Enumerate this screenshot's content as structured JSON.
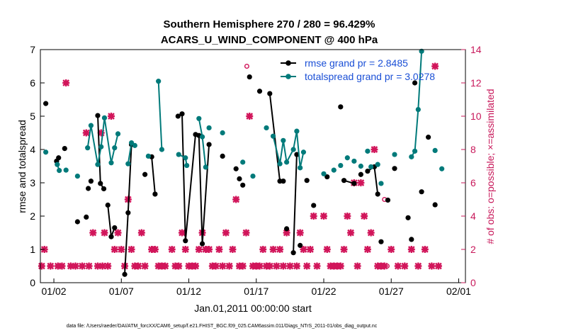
{
  "colors": {
    "rmse": "#000000",
    "spread": "#007a7a",
    "obs": "#d1155a",
    "legend_text": "#1a4fd6",
    "axis_right": "#c8185a"
  },
  "chart_data": {
    "type": "line",
    "title": "Southern Hemisphere 270 / 280 = 96.429%",
    "subtitle": "ACARS_U_WIND_COMPONENT @ 400 hPa",
    "xlabel": "Jan.01,2011 00:00:00 start",
    "ylabel": "rmse and totalspread",
    "ylabel_right": "# of obs: o=possible; ×=assimilated",
    "footer": "data file: /Users/raeder/DAI/ATM_forcXX/CAM6_setup/f.e21.FHIST_BGC.f09_025.CAM6assim.011/Diags_NTrS_2011-01/obs_diag_output.nc",
    "xlim": [
      1.0,
      32.5
    ],
    "ylim": [
      0,
      7
    ],
    "ylim_right": [
      0,
      14
    ],
    "xticks": [
      2,
      7,
      12,
      17,
      22,
      27,
      32
    ],
    "xtick_labels": [
      "01/02",
      "01/07",
      "01/12",
      "01/17",
      "01/22",
      "01/27",
      "02/01"
    ],
    "yticks": [
      0,
      1,
      2,
      3,
      4,
      5,
      6,
      7
    ],
    "yticks_right": [
      0,
      2,
      4,
      6,
      8,
      10,
      12,
      14
    ],
    "grid": false,
    "legend_position": "top-right",
    "series": [
      {
        "name": "rmse grand pr = 2.8485",
        "color": "#000000",
        "points": [
          [
            1.4,
            5.38
          ],
          [
            2.2,
            3.65
          ],
          [
            2.35,
            3.75
          ],
          [
            2.8,
            4.03
          ],
          [
            3.75,
            1.83
          ],
          [
            4.4,
            1.97
          ],
          [
            4.55,
            2.83
          ],
          [
            4.75,
            3.05
          ],
          [
            5.25,
            5.02
          ],
          [
            5.45,
            2.98
          ],
          [
            5.7,
            2.82
          ],
          [
            6.0,
            2.33
          ],
          [
            6.25,
            1.38
          ],
          [
            6.5,
            1.65
          ],
          [
            7.25,
            0.25
          ],
          [
            7.5,
            2.1
          ],
          [
            7.75,
            4.15
          ],
          [
            8.75,
            3.25
          ],
          [
            9.25,
            3.78
          ],
          [
            9.5,
            2.66
          ],
          [
            11.2,
            5.0
          ],
          [
            11.5,
            5.07
          ],
          [
            11.75,
            1.26
          ],
          [
            12.5,
            4.45
          ],
          [
            12.75,
            4.42
          ],
          [
            13.0,
            1.17
          ],
          [
            13.5,
            4.15
          ],
          [
            14.5,
            3.8
          ],
          [
            15.5,
            3.42
          ],
          [
            15.75,
            3.12
          ],
          [
            16.0,
            2.93
          ],
          [
            16.5,
            6.18
          ],
          [
            17.25,
            5.75
          ],
          [
            18.0,
            5.68
          ],
          [
            18.75,
            3.05
          ],
          [
            19.0,
            3.05
          ],
          [
            19.25,
            1.62
          ],
          [
            19.75,
            0.9
          ],
          [
            20.0,
            3.85
          ],
          [
            20.25,
            1.12
          ],
          [
            20.75,
            3.07
          ],
          [
            21.25,
            2.32
          ],
          [
            22.25,
            3.18
          ],
          [
            23.25,
            5.28
          ],
          [
            23.5,
            3.07
          ],
          [
            24.25,
            2.98
          ],
          [
            24.75,
            3.25
          ],
          [
            25.25,
            3.35
          ],
          [
            25.75,
            3.48
          ],
          [
            26.0,
            2.66
          ],
          [
            26.25,
            1.23
          ],
          [
            26.75,
            2.48
          ],
          [
            27.25,
            3.43
          ],
          [
            28.25,
            1.95
          ],
          [
            28.5,
            1.3
          ],
          [
            28.75,
            6.0
          ],
          [
            29.25,
            2.73
          ],
          [
            29.75,
            4.37
          ],
          [
            30.25,
            2.34
          ]
        ],
        "segments": [
          [
            1,
            2
          ],
          [
            8,
            10
          ],
          [
            11,
            13
          ],
          [
            14,
            16
          ],
          [
            18,
            19
          ],
          [
            21,
            23
          ],
          [
            24,
            26
          ],
          [
            33,
            35
          ],
          [
            37,
            38
          ],
          [
            44,
            45
          ],
          [
            47,
            49
          ]
        ]
      },
      {
        "name": "totalspread grand pr = 3.0278",
        "color": "#007a7a",
        "points": [
          [
            1.4,
            3.92
          ],
          [
            2.25,
            3.55
          ],
          [
            2.4,
            3.37
          ],
          [
            2.9,
            3.38
          ],
          [
            3.75,
            3.2
          ],
          [
            4.5,
            4.05
          ],
          [
            4.75,
            4.72
          ],
          [
            5.25,
            3.55
          ],
          [
            5.5,
            4.08
          ],
          [
            5.75,
            4.95
          ],
          [
            6.25,
            3.6
          ],
          [
            6.5,
            4.05
          ],
          [
            6.75,
            4.47
          ],
          [
            7.5,
            3.57
          ],
          [
            7.75,
            4.2
          ],
          [
            8.0,
            4.12
          ],
          [
            9.0,
            3.8
          ],
          [
            9.75,
            6.05
          ],
          [
            10.0,
            4.0
          ],
          [
            11.25,
            3.85
          ],
          [
            11.75,
            3.75
          ],
          [
            11.85,
            3.52
          ],
          [
            12.75,
            4.93
          ],
          [
            13.0,
            4.38
          ],
          [
            13.25,
            3.47
          ],
          [
            13.5,
            4.65
          ],
          [
            14.5,
            4.5
          ],
          [
            16.0,
            3.62
          ],
          [
            16.75,
            3.2
          ],
          [
            17.75,
            4.65
          ],
          [
            18.25,
            4.4
          ],
          [
            18.75,
            3.57
          ],
          [
            19.0,
            4.27
          ],
          [
            19.25,
            3.62
          ],
          [
            19.75,
            4.0
          ],
          [
            20.0,
            4.55
          ],
          [
            20.25,
            3.45
          ],
          [
            20.5,
            3.92
          ],
          [
            22.0,
            3.27
          ],
          [
            22.75,
            3.38
          ],
          [
            23.25,
            3.52
          ],
          [
            23.75,
            3.75
          ],
          [
            24.25,
            3.65
          ],
          [
            24.75,
            3.5
          ],
          [
            25.25,
            3.95
          ],
          [
            25.5,
            3.48
          ],
          [
            26.0,
            3.55
          ],
          [
            26.25,
            2.98
          ],
          [
            27.25,
            3.85
          ],
          [
            28.5,
            3.78
          ],
          [
            28.75,
            3.95
          ],
          [
            29.0,
            5.2
          ],
          [
            29.25,
            6.95
          ],
          [
            30.25,
            3.97
          ],
          [
            30.75,
            3.42
          ]
        ],
        "segments": [
          [
            1,
            2
          ],
          [
            5,
            9
          ],
          [
            9,
            10
          ],
          [
            10,
            12
          ],
          [
            13,
            15
          ],
          [
            17,
            18
          ],
          [
            19,
            21
          ],
          [
            22,
            24
          ],
          [
            30,
            32
          ],
          [
            32,
            37
          ],
          [
            49,
            52
          ]
        ]
      }
    ],
    "obs_assimilated": [
      [
        1.1,
        1
      ],
      [
        1.3,
        2
      ],
      [
        1.75,
        1
      ],
      [
        2.3,
        1
      ],
      [
        2.6,
        1
      ],
      [
        2.9,
        12
      ],
      [
        3.25,
        1
      ],
      [
        3.6,
        1
      ],
      [
        4.1,
        1
      ],
      [
        4.4,
        9
      ],
      [
        4.6,
        1
      ],
      [
        4.9,
        3
      ],
      [
        5.25,
        1
      ],
      [
        5.75,
        3
      ],
      [
        5.5,
        9
      ],
      [
        5.6,
        1
      ],
      [
        6.0,
        1
      ],
      [
        6.25,
        10
      ],
      [
        6.5,
        2
      ],
      [
        6.75,
        3
      ],
      [
        7.0,
        2
      ],
      [
        7.25,
        1
      ],
      [
        7.5,
        5
      ],
      [
        7.75,
        2
      ],
      [
        8.0,
        1
      ],
      [
        8.25,
        1
      ],
      [
        8.5,
        3
      ],
      [
        8.75,
        1
      ],
      [
        9.25,
        2
      ],
      [
        9.5,
        2
      ],
      [
        9.75,
        1
      ],
      [
        10.0,
        1
      ],
      [
        10.25,
        1
      ],
      [
        10.75,
        2
      ],
      [
        11.0,
        1
      ],
      [
        11.25,
        1
      ],
      [
        11.5,
        3
      ],
      [
        11.75,
        2
      ],
      [
        12.0,
        1
      ],
      [
        12.25,
        1
      ],
      [
        12.5,
        1
      ],
      [
        12.75,
        2
      ],
      [
        13.0,
        3
      ],
      [
        13.25,
        2
      ],
      [
        13.5,
        2
      ],
      [
        13.75,
        1
      ],
      [
        14.0,
        1
      ],
      [
        14.25,
        2
      ],
      [
        14.5,
        1
      ],
      [
        14.75,
        3
      ],
      [
        15.0,
        1
      ],
      [
        15.25,
        2
      ],
      [
        15.5,
        5
      ],
      [
        15.75,
        1
      ],
      [
        16.0,
        1
      ],
      [
        16.25,
        3
      ],
      [
        16.5,
        10
      ],
      [
        16.75,
        1
      ],
      [
        17.0,
        1
      ],
      [
        17.25,
        1
      ],
      [
        17.5,
        2
      ],
      [
        17.75,
        1
      ],
      [
        18.0,
        1
      ],
      [
        18.25,
        2
      ],
      [
        18.5,
        1
      ],
      [
        18.75,
        2
      ],
      [
        19.0,
        1
      ],
      [
        19.25,
        3
      ],
      [
        19.5,
        1
      ],
      [
        20.0,
        1
      ],
      [
        20.25,
        3
      ],
      [
        20.5,
        2
      ],
      [
        20.75,
        1
      ],
      [
        21.0,
        2
      ],
      [
        21.25,
        4
      ],
      [
        21.5,
        1
      ],
      [
        22.0,
        4
      ],
      [
        22.25,
        2
      ],
      [
        22.5,
        1
      ],
      [
        22.75,
        1
      ],
      [
        23.0,
        1
      ],
      [
        23.25,
        1
      ],
      [
        23.5,
        2
      ],
      [
        23.75,
        4
      ],
      [
        24.0,
        3
      ],
      [
        24.25,
        6
      ],
      [
        24.5,
        1
      ],
      [
        24.75,
        6
      ],
      [
        25.0,
        4
      ],
      [
        25.25,
        2
      ],
      [
        25.5,
        3
      ],
      [
        25.75,
        8
      ],
      [
        26.0,
        1
      ],
      [
        26.25,
        1
      ],
      [
        26.5,
        1
      ],
      [
        27.0,
        2
      ],
      [
        27.5,
        1
      ],
      [
        28.0,
        1
      ],
      [
        28.5,
        2
      ],
      [
        29.0,
        1
      ],
      [
        29.5,
        2
      ],
      [
        30.0,
        1
      ],
      [
        30.25,
        13
      ],
      [
        30.5,
        1
      ]
    ],
    "obs_possible": [
      [
        16.3,
        13
      ],
      [
        26.5,
        5
      ],
      [
        26.7,
        1
      ]
    ]
  }
}
